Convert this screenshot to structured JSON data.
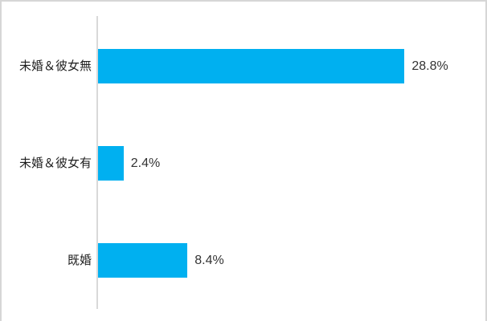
{
  "chart_data": {
    "type": "bar",
    "orientation": "horizontal",
    "title": "",
    "xlabel": "",
    "ylabel": "",
    "categories": [
      "未婚＆彼女無",
      "未婚＆彼女有",
      "既婚"
    ],
    "values": [
      28.8,
      2.4,
      8.4
    ],
    "value_labels": [
      "28.8%",
      "2.4%",
      "8.4%"
    ],
    "xlim": [
      0,
      36.4
    ],
    "grid": false,
    "legend": false,
    "colors": {
      "bar": "#00b0f0",
      "axis_line": "#d9d9d9",
      "category_text": "#1f1f1f",
      "value_text": "#333333",
      "background": "#ffffff",
      "frame_border": "#d6d6d6"
    }
  }
}
